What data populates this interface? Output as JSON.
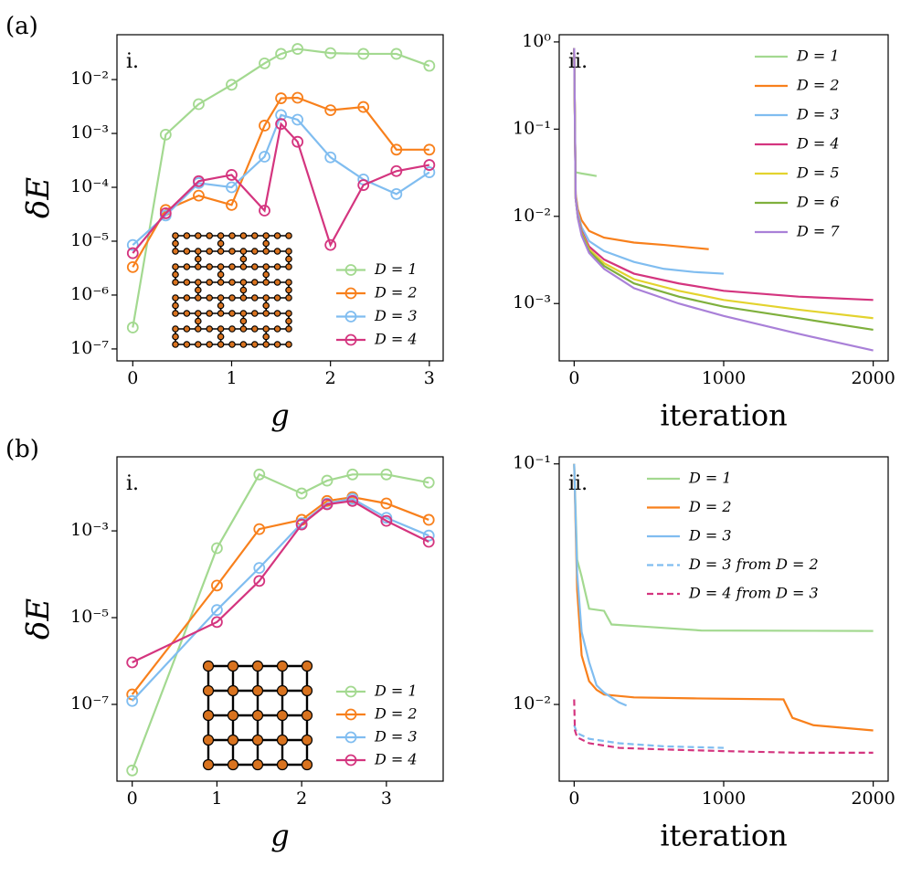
{
  "chart_data": [
    {
      "type": "line",
      "panel": "(a)",
      "label": "i.",
      "xlabel": "g",
      "ylabel": "δE",
      "yscale": "log",
      "markers": true,
      "legend": "lower right",
      "xlim": [
        -0.16,
        3.14
      ],
      "ylim": [
        6e-08,
        0.068
      ],
      "xticks": [
        0,
        1,
        2,
        3
      ],
      "yticks": [
        {
          "value": 1e-07,
          "label": "10⁻⁷"
        },
        {
          "value": 1e-06,
          "label": "10⁻⁶"
        },
        {
          "value": 1e-05,
          "label": "10⁻⁵"
        },
        {
          "value": 0.0001,
          "label": "10⁻⁴"
        },
        {
          "value": 0.001,
          "label": "10⁻³"
        },
        {
          "value": 0.01,
          "label": "10⁻²"
        }
      ],
      "x": [
        0,
        0.333,
        0.667,
        1,
        1.333,
        1.5,
        1.667,
        2,
        2.333,
        2.667,
        3
      ],
      "series": [
        {
          "name": "D = 1",
          "color": "#a3d990",
          "values": [
            2.5e-07,
            0.00095,
            0.0035,
            0.008,
            0.02,
            0.03,
            0.037,
            0.031,
            0.03,
            0.03,
            0.018
          ]
        },
        {
          "name": "D = 2",
          "color": "#f8801c",
          "values": [
            3.3e-06,
            3.8e-05,
            7e-05,
            4.7e-05,
            0.0014,
            0.0045,
            0.0046,
            0.0027,
            0.0031,
            0.0005,
            0.0005
          ]
        },
        {
          "name": "D = 3",
          "color": "#80bdf0",
          "values": [
            8.5e-06,
            3e-05,
            0.00012,
            0.0001,
            0.00037,
            0.0022,
            0.0018,
            0.00036,
            0.00014,
            7.5e-05,
            0.00019
          ]
        },
        {
          "name": "D = 4",
          "color": "#d4357f",
          "values": [
            6e-06,
            3.3e-05,
            0.00013,
            0.00017,
            3.7e-05,
            0.0015,
            0.0007,
            8.5e-06,
            0.00011,
            0.0002,
            0.00026
          ]
        }
      ]
    },
    {
      "type": "line",
      "label": "ii.",
      "xlabel": "iteration",
      "yscale": "log",
      "markers": false,
      "legend": "upper right",
      "xlim": [
        -100,
        2100
      ],
      "ylim": [
        0.00022,
        1.21
      ],
      "xticks": [
        0,
        1000,
        2000
      ],
      "yticks": [
        {
          "value": 0.001,
          "label": "10⁻³"
        },
        {
          "value": 0.01,
          "label": "10⁻²"
        },
        {
          "value": 0.1,
          "label": "10⁻¹"
        },
        {
          "value": 1,
          "label": "10⁰"
        }
      ],
      "series": [
        {
          "name": "D = 1",
          "color": "#a3d990",
          "x": [
            0,
            5,
            10,
            50,
            100,
            150
          ],
          "values": [
            0.85,
            0.1,
            0.032,
            0.031,
            0.03,
            0.029
          ]
        },
        {
          "name": "D = 2",
          "color": "#f8801c",
          "x": [
            0,
            10,
            25,
            50,
            100,
            200,
            400,
            600,
            900
          ],
          "values": [
            0.85,
            0.018,
            0.012,
            0.009,
            0.0068,
            0.0057,
            0.005,
            0.0047,
            0.0042
          ]
        },
        {
          "name": "D = 3",
          "color": "#80bdf0",
          "x": [
            0,
            10,
            25,
            50,
            100,
            200,
            400,
            600,
            800,
            1000
          ],
          "values": [
            0.85,
            0.017,
            0.011,
            0.0075,
            0.0052,
            0.004,
            0.003,
            0.0025,
            0.0023,
            0.0022
          ]
        },
        {
          "name": "D = 4",
          "color": "#d4357f",
          "x": [
            0,
            10,
            25,
            50,
            100,
            200,
            400,
            700,
            1000,
            1500,
            2000
          ],
          "values": [
            0.85,
            0.016,
            0.01,
            0.0068,
            0.0045,
            0.0032,
            0.0022,
            0.0017,
            0.0014,
            0.0012,
            0.0011
          ]
        },
        {
          "name": "D = 5",
          "color": "#e3d32e",
          "x": [
            0,
            10,
            25,
            50,
            100,
            200,
            400,
            700,
            1000,
            1500,
            2000
          ],
          "values": [
            0.85,
            0.016,
            0.0098,
            0.0065,
            0.0042,
            0.0029,
            0.0019,
            0.0014,
            0.0011,
            0.00085,
            0.00068
          ]
        },
        {
          "name": "D = 6",
          "color": "#7fb03d",
          "x": [
            0,
            10,
            25,
            50,
            100,
            200,
            400,
            700,
            1000,
            1500,
            2000
          ],
          "values": [
            0.85,
            0.016,
            0.0095,
            0.0063,
            0.004,
            0.0027,
            0.0017,
            0.0012,
            0.00092,
            0.00068,
            0.0005
          ]
        },
        {
          "name": "D = 7",
          "color": "#a980d8",
          "x": [
            0,
            10,
            25,
            50,
            100,
            200,
            400,
            700,
            1000,
            1500,
            2000
          ],
          "values": [
            0.85,
            0.016,
            0.0095,
            0.006,
            0.0038,
            0.0025,
            0.0015,
            0.001,
            0.00072,
            0.00045,
            0.00029
          ]
        }
      ]
    },
    {
      "type": "line",
      "panel": "(b)",
      "label": "i.",
      "xlabel": "g",
      "ylabel": "δE",
      "yscale": "log",
      "markers": true,
      "legend": "lower right",
      "xlim": [
        -0.18,
        3.67
      ],
      "ylim": [
        1.7e-09,
        0.051
      ],
      "xticks": [
        0,
        1,
        2,
        3
      ],
      "yticks": [
        {
          "value": 1e-07,
          "label": "10⁻⁷"
        },
        {
          "value": 1e-05,
          "label": "10⁻⁵"
        },
        {
          "value": 0.001,
          "label": "10⁻³"
        }
      ],
      "x": [
        0,
        1,
        1.5,
        2,
        2.3,
        2.6,
        3,
        3.5
      ],
      "series": [
        {
          "name": "D = 1",
          "color": "#a3d990",
          "values": [
            3e-09,
            0.0004,
            0.02,
            0.0073,
            0.0144,
            0.02,
            0.02,
            0.013
          ]
        },
        {
          "name": "D = 2",
          "color": "#f8801c",
          "values": [
            1.7e-07,
            5.5e-05,
            0.0011,
            0.0018,
            0.0049,
            0.006,
            0.0043,
            0.0018
          ]
        },
        {
          "name": "D = 3",
          "color": "#80bdf0",
          "values": [
            1.2e-07,
            1.5e-05,
            0.00014,
            0.0015,
            0.0043,
            0.0055,
            0.002,
            0.00078
          ]
        },
        {
          "name": "D = 4",
          "color": "#d4357f",
          "values": [
            9.3e-07,
            7.9e-06,
            7e-05,
            0.0014,
            0.0041,
            0.0049,
            0.0017,
            0.00056
          ]
        }
      ]
    },
    {
      "type": "line",
      "label": "ii.",
      "xlabel": "iteration",
      "yscale": "log",
      "markers": false,
      "legend": "upper right",
      "xlim": [
        -100,
        2100
      ],
      "ylim": [
        0.0048,
        0.107
      ],
      "xticks": [
        0,
        1000,
        2000
      ],
      "yticks": [
        {
          "value": 0.01,
          "label": "10⁻²"
        },
        {
          "value": 0.1,
          "label": "10⁻¹"
        }
      ],
      "series": [
        {
          "name": "D = 1",
          "color": "#a3d990",
          "x": [
            0,
            20,
            50,
            70,
            100,
            200,
            250,
            500,
            850,
            2000
          ],
          "values": [
            0.1,
            0.04,
            0.034,
            0.03,
            0.025,
            0.0245,
            0.0215,
            0.021,
            0.0203,
            0.0202
          ]
        },
        {
          "name": "D = 2",
          "color": "#f8801c",
          "x": [
            0,
            20,
            50,
            100,
            150,
            200,
            400,
            800,
            1400,
            1460,
            1600,
            2000
          ],
          "values": [
            0.1,
            0.03,
            0.016,
            0.0125,
            0.0115,
            0.011,
            0.0107,
            0.0106,
            0.0105,
            0.0088,
            0.0082,
            0.0078
          ]
        },
        {
          "name": "D = 3",
          "color": "#80bdf0",
          "x": [
            0,
            20,
            50,
            100,
            150,
            200,
            300,
            350
          ],
          "values": [
            0.1,
            0.035,
            0.02,
            0.015,
            0.012,
            0.0112,
            0.0102,
            0.0099
          ]
        },
        {
          "name": "D = 3 from D = 2",
          "color": "#80bdf0",
          "dashed": true,
          "x": [
            0,
            20,
            100,
            300,
            600,
            1000
          ],
          "values": [
            0.0082,
            0.0076,
            0.0072,
            0.0069,
            0.0067,
            0.0066
          ]
        },
        {
          "name": "D = 4 from D = 3",
          "color": "#d4357f",
          "dashed": true,
          "x": [
            0,
            5,
            20,
            100,
            300,
            600,
            1000,
            1500,
            2000
          ],
          "values": [
            0.0105,
            0.0078,
            0.0073,
            0.0069,
            0.0066,
            0.0065,
            0.0064,
            0.0063,
            0.0063
          ]
        }
      ]
    }
  ]
}
